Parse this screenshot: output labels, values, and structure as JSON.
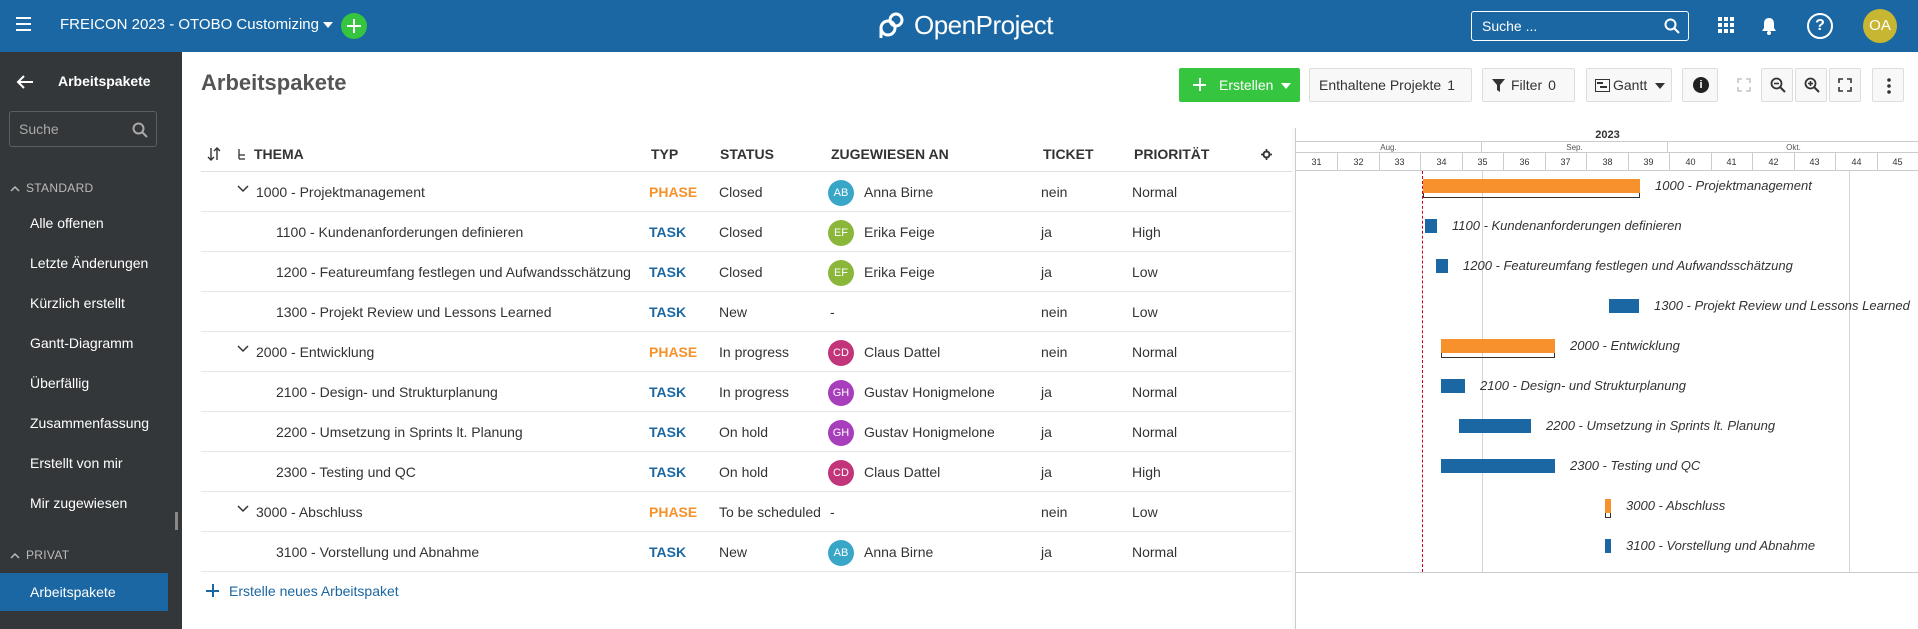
{
  "header": {
    "project": "FREICON 2023 - OTOBO Customizing",
    "logo": "OpenProject",
    "search_placeholder": "Suche ...",
    "user_initials": "OA",
    "help_symbol": "?",
    "colors": {
      "header_bg": "#1a67a3",
      "add_button": "#35c53f",
      "avatar": "#c6b631"
    }
  },
  "sidebar": {
    "title": "Arbeitspakete",
    "search_placeholder": "Suche",
    "sections": [
      {
        "label": "STANDARD"
      },
      {
        "label": "PRIVAT"
      }
    ],
    "standard_items": [
      "Alle offenen",
      "Letzte Änderungen",
      "Kürzlich erstellt",
      "Gantt-Diagramm",
      "Überfällig",
      "Zusammenfassung",
      "Erstellt von mir",
      "Mir zugewiesen"
    ],
    "private_items": [
      "Arbeitspakete"
    ]
  },
  "main": {
    "title": "Arbeitspakete",
    "toolbar": {
      "create": "Erstellen",
      "subprojects": "Enthaltene Projekte",
      "subprojects_count": "1",
      "filter": "Filter",
      "filter_count": "0",
      "view": "Gantt",
      "info_symbol": "i"
    },
    "columns": [
      "THEMA",
      "TYP",
      "STATUS",
      "ZUGEWIESEN AN",
      "TICKET",
      "PRIORITÄT"
    ],
    "rows": [
      {
        "subject": "1000 - Projektmanagement",
        "type": "PHASE",
        "status": "Closed",
        "initials": "AB",
        "assignee": "Anna Birne",
        "avatar_color": "#3aa6c7",
        "ticket": "nein",
        "priority": "Normal",
        "expandable": true
      },
      {
        "subject": "1100 - Kundenanforderungen definieren",
        "type": "TASK",
        "status": "Closed",
        "initials": "EF",
        "assignee": "Erika Feige",
        "avatar_color": "#8ab63a",
        "ticket": "ja",
        "priority": "High",
        "expandable": false
      },
      {
        "subject": "1200 - Featureumfang festlegen und Aufwandsschätzung",
        "type": "TASK",
        "status": "Closed",
        "initials": "EF",
        "assignee": "Erika Feige",
        "avatar_color": "#8ab63a",
        "ticket": "ja",
        "priority": "Low",
        "expandable": false
      },
      {
        "subject": "1300 - Projekt Review und Lessons Learned",
        "type": "TASK",
        "status": "New",
        "initials": "",
        "assignee": "-",
        "avatar_color": "",
        "ticket": "nein",
        "priority": "Low",
        "expandable": false
      },
      {
        "subject": "2000 - Entwicklung",
        "type": "PHASE",
        "status": "In progress",
        "initials": "CD",
        "assignee": "Claus Dattel",
        "avatar_color": "#c2357b",
        "ticket": "nein",
        "priority": "Normal",
        "expandable": true
      },
      {
        "subject": "2100 - Design- und Strukturplanung",
        "type": "TASK",
        "status": "In progress",
        "initials": "GH",
        "assignee": "Gustav Honigmelone",
        "avatar_color": "#a73fbd",
        "ticket": "ja",
        "priority": "Normal",
        "expandable": false
      },
      {
        "subject": "2200 - Umsetzung in Sprints lt. Planung",
        "type": "TASK",
        "status": "On hold",
        "initials": "GH",
        "assignee": "Gustav Honigmelone",
        "avatar_color": "#a73fbd",
        "ticket": "ja",
        "priority": "Normal",
        "expandable": false
      },
      {
        "subject": "2300 - Testing und QC",
        "type": "TASK",
        "status": "On hold",
        "initials": "CD",
        "assignee": "Claus Dattel",
        "avatar_color": "#c2357b",
        "ticket": "ja",
        "priority": "High",
        "expandable": false
      },
      {
        "subject": "3000 - Abschluss",
        "type": "PHASE",
        "status": "To be scheduled",
        "initials": "",
        "assignee": "-",
        "avatar_color": "",
        "ticket": "nein",
        "priority": "Low",
        "expandable": true
      },
      {
        "subject": "3100 - Vorstellung und Abnahme",
        "type": "TASK",
        "status": "New",
        "initials": "AB",
        "assignee": "Anna Birne",
        "avatar_color": "#3aa6c7",
        "ticket": "ja",
        "priority": "Normal",
        "expandable": false
      }
    ],
    "create_new": "Erstelle neues Arbeitspaket"
  },
  "gantt": {
    "year": "2023",
    "months": [
      "Aug.",
      "Sep.",
      "Okt."
    ],
    "weeks": [
      "31",
      "32",
      "33",
      "34",
      "35",
      "36",
      "37",
      "38",
      "39",
      "40",
      "41",
      "42",
      "43",
      "44",
      "45"
    ],
    "bar_colors": {
      "phase": "#f7912b",
      "task": "#1a67a3",
      "today": "#d0021b"
    }
  }
}
